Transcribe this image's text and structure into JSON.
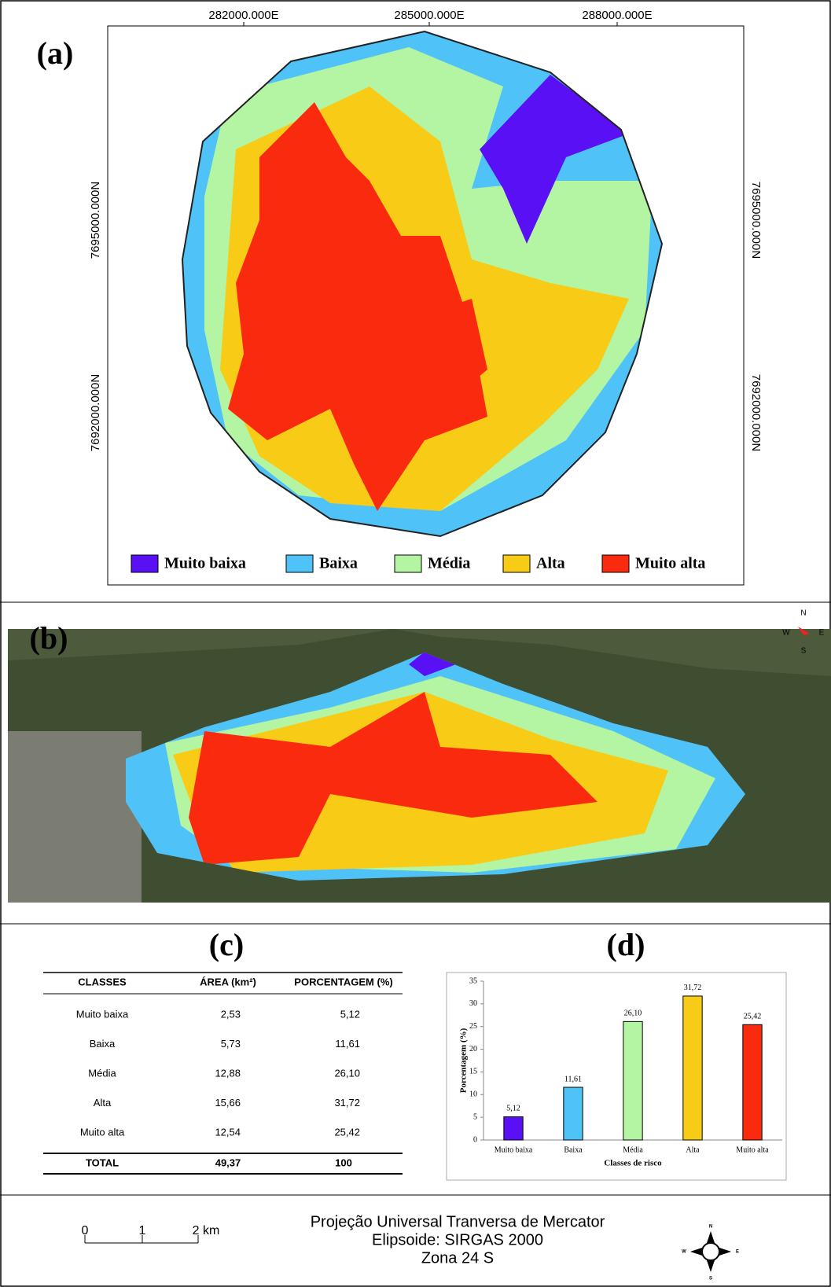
{
  "panels": {
    "a": "(a)",
    "b": "(b)",
    "c": "(c)",
    "d": "(d)"
  },
  "map": {
    "x_labels": [
      "282000.000E",
      "285000.000E",
      "288000.000E"
    ],
    "y_labels": [
      "7695000.000N",
      "7692000.000N"
    ],
    "legend": [
      {
        "label": "Muito baixa",
        "color": "#5a10f5"
      },
      {
        "label": "Baixa",
        "color": "#4fc3f7"
      },
      {
        "label": "Média",
        "color": "#b3f5a3"
      },
      {
        "label": "Alta",
        "color": "#f7cb16"
      },
      {
        "label": "Muito alta",
        "color": "#fa2a0f"
      }
    ]
  },
  "compass_3d": [
    "N",
    "W",
    "E",
    "S"
  ],
  "table": {
    "header": [
      "CLASSES",
      "ÁREA (km²)",
      "PORCENTAGEM (%)"
    ],
    "rows": [
      [
        "Muito baixa",
        "2,53",
        "5,12"
      ],
      [
        "Baixa",
        "5,73",
        "11,61"
      ],
      [
        "Média",
        "12,88",
        "26,10"
      ],
      [
        "Alta",
        "15,66",
        "31,72"
      ],
      [
        "Muito alta",
        "12,54",
        "25,42"
      ]
    ],
    "total": [
      "TOTAL",
      "49,37",
      "100"
    ]
  },
  "chart_data": {
    "type": "bar",
    "categories": [
      "Muito baixa",
      "Baixa",
      "Média",
      "Alta",
      "Muito alta"
    ],
    "values": [
      5.12,
      11.61,
      26.1,
      31.72,
      25.42
    ],
    "value_labels": [
      "5,12",
      "11,61",
      "26,10",
      "31,72",
      "25,42"
    ],
    "colors": [
      "#5a10f5",
      "#4fc3f7",
      "#b3f5a3",
      "#f7cb16",
      "#fa2a0f"
    ],
    "ylim": [
      0,
      35
    ],
    "yticks": [
      0,
      5,
      10,
      15,
      20,
      25,
      30,
      35
    ],
    "ylabel": "Porcentagem (%)",
    "xlabel": "Classes de risco"
  },
  "footer": {
    "scale": [
      "0",
      "1",
      "2 km"
    ],
    "projection": [
      "Projeção Universal Tranversa de Mercator",
      "Elipsoide: SIRGAS 2000",
      "Zona 24 S"
    ],
    "compass": [
      "N",
      "W",
      "E",
      "S"
    ]
  }
}
